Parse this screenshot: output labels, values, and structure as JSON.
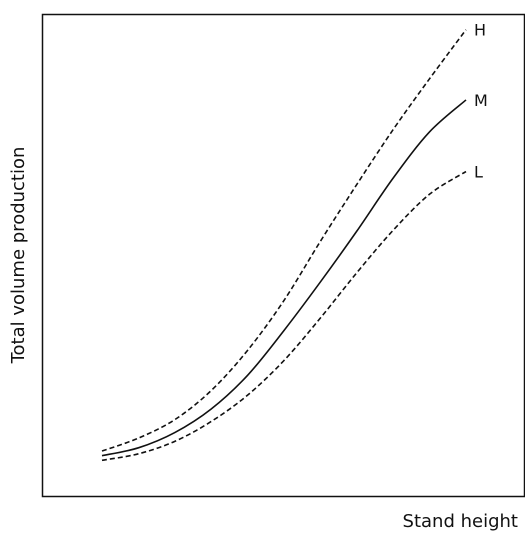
{
  "chart_data": {
    "type": "line",
    "title": "",
    "xlabel": "Stand height",
    "ylabel": "Total volume production",
    "grid": false,
    "legend": "none",
    "ticks": false,
    "series": [
      {
        "name": "H",
        "style": "dashed",
        "color": "#111111",
        "x": [
          0.0,
          0.1,
          0.2,
          0.3,
          0.4,
          0.5,
          0.6,
          0.7,
          0.8,
          0.9,
          1.0
        ],
        "y": [
          0.054,
          0.082,
          0.122,
          0.185,
          0.272,
          0.38,
          0.508,
          0.631,
          0.75,
          0.86,
          0.966
        ]
      },
      {
        "name": "M",
        "style": "solid",
        "color": "#111111",
        "x": [
          0.0,
          0.1,
          0.2,
          0.3,
          0.4,
          0.5,
          0.6,
          0.7,
          0.8,
          0.9,
          1.0
        ],
        "y": [
          0.044,
          0.061,
          0.094,
          0.145,
          0.218,
          0.315,
          0.42,
          0.53,
          0.645,
          0.745,
          0.814
        ]
      },
      {
        "name": "L",
        "style": "dashed",
        "color": "#111111",
        "x": [
          0.0,
          0.1,
          0.2,
          0.3,
          0.4,
          0.5,
          0.6,
          0.7,
          0.8,
          0.9,
          1.0
        ],
        "y": [
          0.034,
          0.048,
          0.075,
          0.118,
          0.175,
          0.25,
          0.342,
          0.44,
          0.532,
          0.61,
          0.659
        ]
      }
    ],
    "xlim": [
      0,
      1
    ],
    "ylim": [
      0,
      1
    ]
  }
}
